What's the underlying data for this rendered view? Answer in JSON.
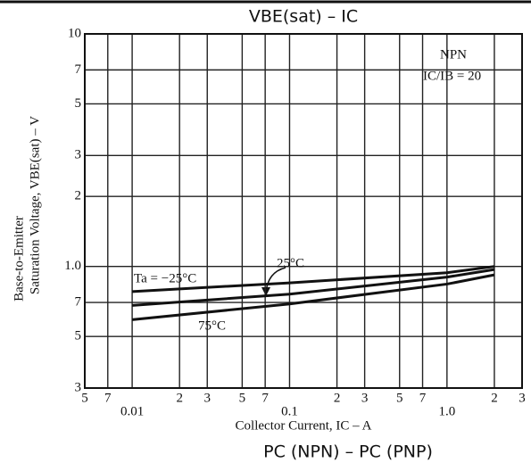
{
  "chart_data": {
    "type": "line",
    "title": "VBE(sat) – IC",
    "xlabel": "Collector Current, IC – A",
    "ylabel": [
      "Base-to-Emitter",
      "Saturation Voltage, VBE(sat) – V"
    ],
    "xscale": "log",
    "yscale": "log",
    "grid": true,
    "xlim": [
      0.005,
      3
    ],
    "ylim": [
      0.3,
      10
    ],
    "xticks": [
      {
        "value": 0.005,
        "label": "5"
      },
      {
        "value": 0.007,
        "label": "7"
      },
      0.01,
      {
        "value": 0.02,
        "label": "2"
      },
      {
        "value": 0.03,
        "label": "3"
      },
      {
        "value": 0.05,
        "label": "5"
      },
      {
        "value": 0.07,
        "label": "7"
      },
      0.1,
      {
        "value": 0.2,
        "label": "2"
      },
      {
        "value": 0.3,
        "label": "3"
      },
      {
        "value": 0.5,
        "label": "5"
      },
      {
        "value": 0.7,
        "label": "7"
      },
      {
        "value": 1,
        "label": "1.0"
      },
      2,
      3
    ],
    "yticks": [
      10,
      7,
      5,
      3,
      2,
      {
        "value": 1,
        "label": "1.0"
      },
      {
        "value": 0.7,
        "label": "7"
      },
      {
        "value": 0.5,
        "label": "5"
      },
      {
        "value": 0.3,
        "label": "3"
      }
    ],
    "x": [
      0.01,
      0.1,
      1,
      2
    ],
    "series": [
      {
        "name": "Ta = −25°C",
        "color": "#111111",
        "values": [
          0.78,
          0.85,
          0.94,
          1.0
        ]
      },
      {
        "name": "25°C",
        "color": "#111111",
        "values": [
          0.68,
          0.76,
          0.9,
          0.97
        ]
      },
      {
        "name": "75°C",
        "color": "#111111",
        "values": [
          0.59,
          0.69,
          0.84,
          0.92
        ]
      }
    ],
    "annotations": [
      "NPN",
      "IC/IB = 20"
    ]
  },
  "footer": "PC (NPN) – PC (PNP)"
}
